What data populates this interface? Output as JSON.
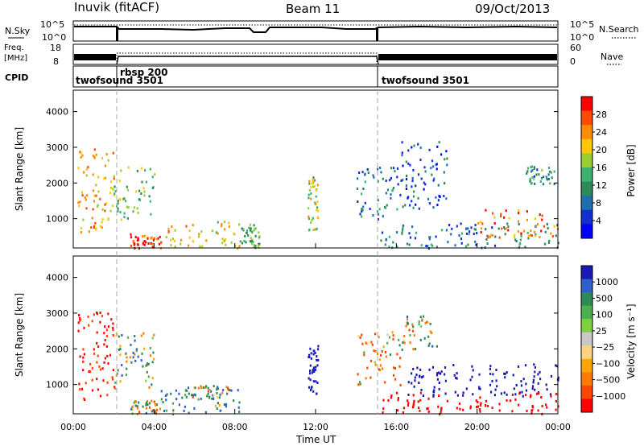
{
  "header": {
    "station": "Inuvik  (fitACF)",
    "beam": "Beam 11",
    "date": "09/Oct/2013"
  },
  "panels": {
    "nsky_label": "N.Sky",
    "nsearch_label": "N.Search",
    "nsky_ticks": [
      "10^5",
      "10^0"
    ],
    "freq_label_1": "Freq.",
    "freq_label_2": "[MHz]",
    "freq_ticks": [
      "18",
      "8"
    ],
    "nave_label": "Nave",
    "nave_ticks": [
      "60",
      "0"
    ],
    "cpid_label": "CPID",
    "cpid_segments": [
      {
        "name": "twofsound 3501",
        "start_hour": 0.0,
        "end_hour": 2.05
      },
      {
        "name": "rbsp 200",
        "start_hour": 2.05,
        "end_hour": 15.05
      },
      {
        "name": "twofsound 3501",
        "start_hour": 15.05,
        "end_hour": 24.0
      }
    ]
  },
  "power_colorbar": {
    "label": "Power [dB]",
    "ticks": [
      "28",
      "24",
      "20",
      "16",
      "12",
      "8",
      "4"
    ],
    "colors": [
      "#ff0000",
      "#ff4a00",
      "#ff8c00",
      "#ffc800",
      "#9acd32",
      "#3cb371",
      "#2e8b57",
      "#1e6fb0",
      "#1030d0",
      "#0000ff"
    ]
  },
  "velocity_colorbar": {
    "label": "Velocity [m s⁻¹]",
    "ticks": [
      "1000",
      "500",
      "100",
      "25",
      "−25",
      "−100",
      "−500",
      "−1000"
    ],
    "colors": [
      "#1a1ab4",
      "#2f5fc8",
      "#2e8b57",
      "#4caf50",
      "#7fd040",
      "#c8c8c8",
      "#ffd27f",
      "#ffa500",
      "#ff7a00",
      "#ff4500",
      "#ff0000"
    ]
  },
  "chart_data": {
    "type": "heatmap",
    "xlabel": "Time UT",
    "ylabel": "Slant Range [km]",
    "x_ticks": [
      "00:00",
      "04:00",
      "08:00",
      "12:00",
      "16:00",
      "20:00",
      "00:00"
    ],
    "xlim_hours": [
      0,
      24
    ],
    "ylim_km": [
      180,
      4600
    ],
    "y_ticks": [
      1000,
      2000,
      3000,
      4000
    ],
    "power_panel": {
      "quantity": "Power [dB]",
      "echo_regions": [
        {
          "t0": 0.2,
          "t1": 2.0,
          "r0": 600,
          "r1": 3050,
          "value": 22
        },
        {
          "t0": 2.0,
          "t1": 4.0,
          "r0": 1000,
          "r1": 2500,
          "value": 16
        },
        {
          "t0": 2.8,
          "t1": 4.3,
          "r0": 200,
          "r1": 600,
          "value": 28
        },
        {
          "t0": 4.3,
          "t1": 8.3,
          "r0": 200,
          "r1": 950,
          "value": 20
        },
        {
          "t0": 8.3,
          "t1": 9.2,
          "r0": 200,
          "r1": 900,
          "value": 14
        },
        {
          "t0": 11.6,
          "t1": 12.1,
          "r0": 700,
          "r1": 2200,
          "value": 18
        },
        {
          "t0": 14.0,
          "t1": 16.2,
          "r0": 1000,
          "r1": 2500,
          "value": 10
        },
        {
          "t0": 16.2,
          "t1": 18.5,
          "r0": 1300,
          "r1": 3200,
          "value": 8
        },
        {
          "t0": 15.2,
          "t1": 24.0,
          "r0": 200,
          "r1": 900,
          "value": 10
        },
        {
          "t0": 20.0,
          "t1": 24.0,
          "r0": 500,
          "r1": 1300,
          "value": 24
        },
        {
          "t0": 22.4,
          "t1": 23.8,
          "r0": 2000,
          "r1": 2500,
          "value": 12
        }
      ]
    },
    "velocity_panel": {
      "quantity": "Velocity [m s⁻¹]",
      "echo_regions": [
        {
          "t0": 0.2,
          "t1": 2.0,
          "r0": 600,
          "r1": 3050,
          "value": -300
        },
        {
          "t0": 2.0,
          "t1": 4.0,
          "r0": 800,
          "r1": 2500,
          "value": 40
        },
        {
          "t0": 2.8,
          "t1": 4.3,
          "r0": 200,
          "r1": 600,
          "value": 0
        },
        {
          "t0": 4.3,
          "t1": 8.3,
          "r0": 200,
          "r1": 950,
          "value": 80
        },
        {
          "t0": 5.5,
          "t1": 8.0,
          "r0": 600,
          "r1": 1000,
          "value": 0
        },
        {
          "t0": 11.6,
          "t1": 12.1,
          "r0": 700,
          "r1": 2200,
          "value": 800
        },
        {
          "t0": 14.0,
          "t1": 16.2,
          "r0": 1000,
          "r1": 2500,
          "value": -60
        },
        {
          "t0": 16.2,
          "t1": 18.0,
          "r0": 2000,
          "r1": 3000,
          "value": 0
        },
        {
          "t0": 16.5,
          "t1": 24.0,
          "r0": 700,
          "r1": 1600,
          "value": 700
        },
        {
          "t0": 15.2,
          "t1": 24.0,
          "r0": 200,
          "r1": 800,
          "value": -400
        }
      ]
    },
    "grid": false
  }
}
